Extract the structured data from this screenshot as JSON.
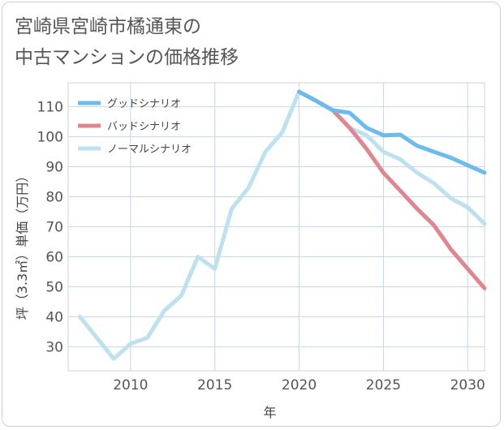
{
  "title_lines": [
    "宮崎県宮崎市橘通東の",
    "中古マンションの価格推移"
  ],
  "chart_data": {
    "type": "line",
    "title": "宮崎県宮崎市橘通東の中古マンションの価格推移",
    "xlabel": "年",
    "ylabel": "坪（3.3㎡）単価（万円）",
    "xlim": [
      2006.3,
      2031
    ],
    "ylim": [
      22,
      118
    ],
    "x_ticks": [
      2010,
      2015,
      2020,
      2025,
      2030
    ],
    "y_ticks": [
      30,
      40,
      50,
      60,
      70,
      80,
      90,
      100,
      110
    ],
    "grid": true,
    "legend_position": "top-left",
    "series": [
      {
        "name": "グッドシナリオ",
        "color": "#6cbbed",
        "x": [
          2020,
          2021,
          2022,
          2023,
          2024,
          2025,
          2026,
          2027,
          2028,
          2029,
          2030,
          2031
        ],
        "values": [
          115,
          112,
          108.8,
          108,
          103,
          100.5,
          100.7,
          97,
          95,
          93,
          90.5,
          88
        ]
      },
      {
        "name": "バッドシナリオ",
        "color": "#e0868e",
        "x": [
          2020,
          2021,
          2022,
          2023,
          2024,
          2025,
          2026,
          2027,
          2028,
          2029,
          2030,
          2031
        ],
        "values": [
          115,
          112,
          108.8,
          103,
          96,
          88,
          82,
          76,
          70.5,
          62.5,
          56,
          49.5
        ]
      },
      {
        "name": "ノーマルシナリオ",
        "color": "#bde1ee",
        "x": [
          2007,
          2008,
          2009,
          2010,
          2011,
          2012,
          2013,
          2014,
          2015,
          2016,
          2017,
          2018,
          2019,
          2020,
          2021,
          2022,
          2023,
          2024,
          2025,
          2026,
          2027,
          2028,
          2029,
          2030,
          2031
        ],
        "values": [
          40,
          33,
          26,
          31,
          33,
          42,
          47,
          60,
          56,
          76,
          83,
          95,
          101.5,
          115,
          112,
          108.8,
          103,
          100.5,
          95,
          92.5,
          88,
          84.5,
          79.5,
          76.5,
          71
        ]
      }
    ]
  }
}
